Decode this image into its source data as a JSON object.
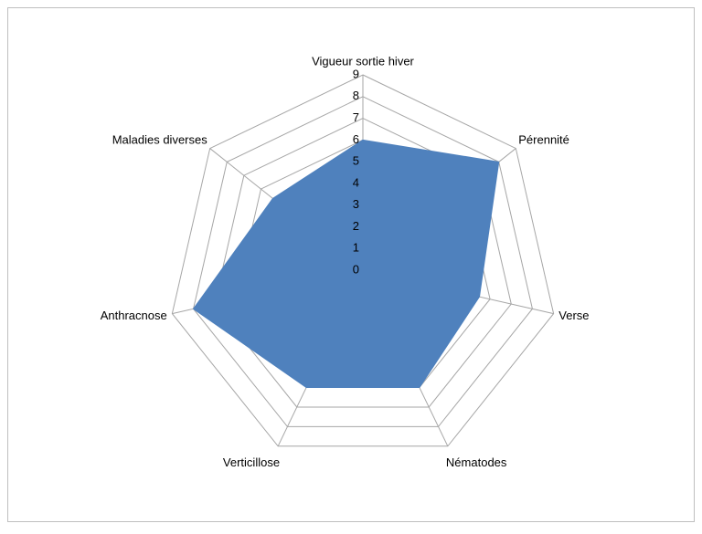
{
  "chart_data": {
    "type": "radar",
    "categories": [
      "Vigueur sortie hiver",
      "Pérennité",
      "Verse",
      "Nématodes",
      "Verticillose",
      "Anthracnose",
      "Maladies diverses"
    ],
    "series": [
      {
        "color": "#4f81bd",
        "values": [
          6,
          8,
          5.5,
          6,
          6,
          8,
          5.3
        ]
      }
    ],
    "ylim": [
      0,
      9
    ],
    "yticks": [
      0,
      1,
      2,
      3,
      4,
      5,
      6,
      7,
      8,
      9
    ],
    "grid": true
  }
}
